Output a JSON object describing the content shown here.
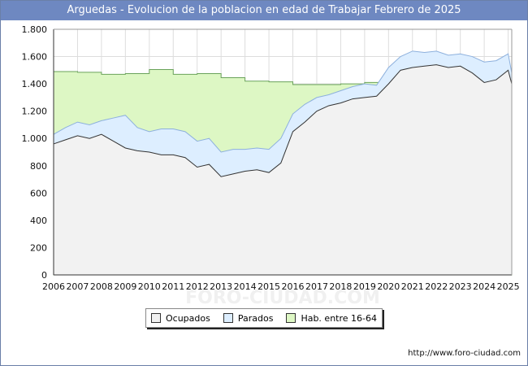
{
  "title": "Arguedas - Evolucion de la poblacion en edad de Trabajar Febrero de 2025",
  "credit": "http://www.foro-ciudad.com",
  "watermark": "FORO-CIUDAD.COM",
  "colors": {
    "title_bg": "#6e88c1",
    "ocupados_fill": "#f2f2f2",
    "parados_fill": "#ddeeff",
    "hab_fill": "#ddf7c4",
    "hab_line": "#6aa35a",
    "parados_line": "#8db0dd",
    "ocupados_line": "#333333",
    "grid": "#dddddd"
  },
  "legend": [
    {
      "label": "Ocupados",
      "color": "#f2f2f2"
    },
    {
      "label": "Parados",
      "color": "#ddeeff"
    },
    {
      "label": "Hab. entre 16-64",
      "color": "#ddf7c4"
    }
  ],
  "chart_data": {
    "type": "area",
    "title": "Arguedas - Evolucion de la poblacion en edad de Trabajar Febrero de 2025",
    "xlim": [
      2006,
      2025.15
    ],
    "ylim": [
      0,
      1800
    ],
    "x_ticks": [
      "2006",
      "2007",
      "2008",
      "2009",
      "2010",
      "2011",
      "2012",
      "2013",
      "2014",
      "2015",
      "2016",
      "2017",
      "2018",
      "2019",
      "2020",
      "2021",
      "2022",
      "2023",
      "2024",
      "2025"
    ],
    "y_ticks": [
      0,
      200,
      400,
      600,
      800,
      1000,
      1200,
      1400,
      1600,
      1800
    ],
    "y_tick_labels": [
      "0",
      "200",
      "400",
      "600",
      "800",
      "1.000",
      "1.200",
      "1.400",
      "1.600",
      "1.800"
    ],
    "hab_16_64": {
      "x": [
        2006,
        2007,
        2008,
        2009,
        2010,
        2011,
        2012,
        2013,
        2014,
        2015,
        2016,
        2017,
        2018,
        2019,
        2020,
        2021,
        2022,
        2023,
        2024,
        2025
      ],
      "values": [
        1490,
        1485,
        1470,
        1475,
        1505,
        1470,
        1475,
        1445,
        1420,
        1415,
        1395,
        1395,
        1400,
        1410,
        1420,
        1430,
        1450,
        1460,
        1470,
        1480
      ]
    },
    "parados": {
      "x": [
        2006.0,
        2006.5,
        2007.0,
        2007.5,
        2008.0,
        2008.5,
        2009.0,
        2009.5,
        2010.0,
        2010.5,
        2011.0,
        2011.5,
        2012.0,
        2012.5,
        2013.0,
        2013.5,
        2014.0,
        2014.5,
        2015.0,
        2015.5,
        2016.0,
        2016.5,
        2017.0,
        2017.5,
        2018.0,
        2018.5,
        2019.0,
        2019.5,
        2020.0,
        2020.5,
        2021.0,
        2021.5,
        2022.0,
        2022.5,
        2023.0,
        2023.5,
        2024.0,
        2024.5,
        2025.0,
        2025.15
      ],
      "values": [
        1030,
        1080,
        1120,
        1100,
        1130,
        1150,
        1170,
        1080,
        1050,
        1070,
        1070,
        1050,
        980,
        1000,
        900,
        920,
        920,
        930,
        920,
        1000,
        1180,
        1250,
        1300,
        1320,
        1350,
        1380,
        1400,
        1390,
        1520,
        1600,
        1640,
        1630,
        1640,
        1610,
        1620,
        1600,
        1560,
        1570,
        1620,
        1480
      ]
    },
    "ocupados": {
      "x": [
        2006.0,
        2006.5,
        2007.0,
        2007.5,
        2008.0,
        2008.5,
        2009.0,
        2009.5,
        2010.0,
        2010.5,
        2011.0,
        2011.5,
        2012.0,
        2012.5,
        2013.0,
        2013.5,
        2014.0,
        2014.5,
        2015.0,
        2015.5,
        2016.0,
        2016.5,
        2017.0,
        2017.5,
        2018.0,
        2018.5,
        2019.0,
        2019.5,
        2020.0,
        2020.5,
        2021.0,
        2021.5,
        2022.0,
        2022.5,
        2023.0,
        2023.5,
        2024.0,
        2024.5,
        2025.0,
        2025.15
      ],
      "values": [
        960,
        990,
        1020,
        1000,
        1030,
        980,
        930,
        910,
        900,
        880,
        880,
        860,
        790,
        810,
        720,
        740,
        760,
        770,
        750,
        820,
        1050,
        1120,
        1200,
        1240,
        1260,
        1290,
        1300,
        1310,
        1400,
        1500,
        1520,
        1530,
        1540,
        1520,
        1530,
        1480,
        1410,
        1430,
        1500,
        1400
      ]
    }
  }
}
